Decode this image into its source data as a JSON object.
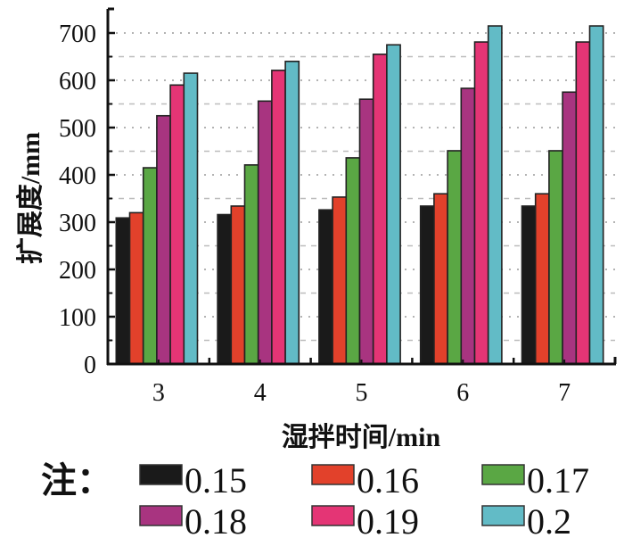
{
  "chart_data": {
    "type": "bar",
    "title": "",
    "xlabel": "湿拌时间/min",
    "ylabel": "扩展度/mm",
    "categories": [
      "3",
      "4",
      "5",
      "6",
      "7"
    ],
    "ylim": [
      0,
      740
    ],
    "yticks": [
      0,
      100,
      200,
      300,
      400,
      500,
      600,
      700
    ],
    "ytick_labels": [
      "0",
      "100",
      "200",
      "300",
      "400",
      "500",
      "600",
      "700"
    ],
    "grid": true,
    "legend_prefix": "注：",
    "legend_position": "bottom",
    "series": [
      {
        "name": "0.15",
        "color": "#1a1a1a",
        "values": [
          309,
          316,
          326,
          334,
          334
        ]
      },
      {
        "name": "0.16",
        "color": "#e2412b",
        "values": [
          320,
          334,
          353,
          360,
          360
        ]
      },
      {
        "name": "0.17",
        "color": "#5aa744",
        "values": [
          415,
          421,
          436,
          451,
          451
        ]
      },
      {
        "name": "0.18",
        "color": "#a83480",
        "values": [
          525,
          556,
          560,
          583,
          575
        ]
      },
      {
        "name": "0.19",
        "color": "#e43575",
        "values": [
          590,
          621,
          655,
          681,
          681
        ]
      },
      {
        "name": "0.2",
        "color": "#62bbc6",
        "values": [
          615,
          640,
          675,
          715,
          715
        ]
      }
    ]
  }
}
